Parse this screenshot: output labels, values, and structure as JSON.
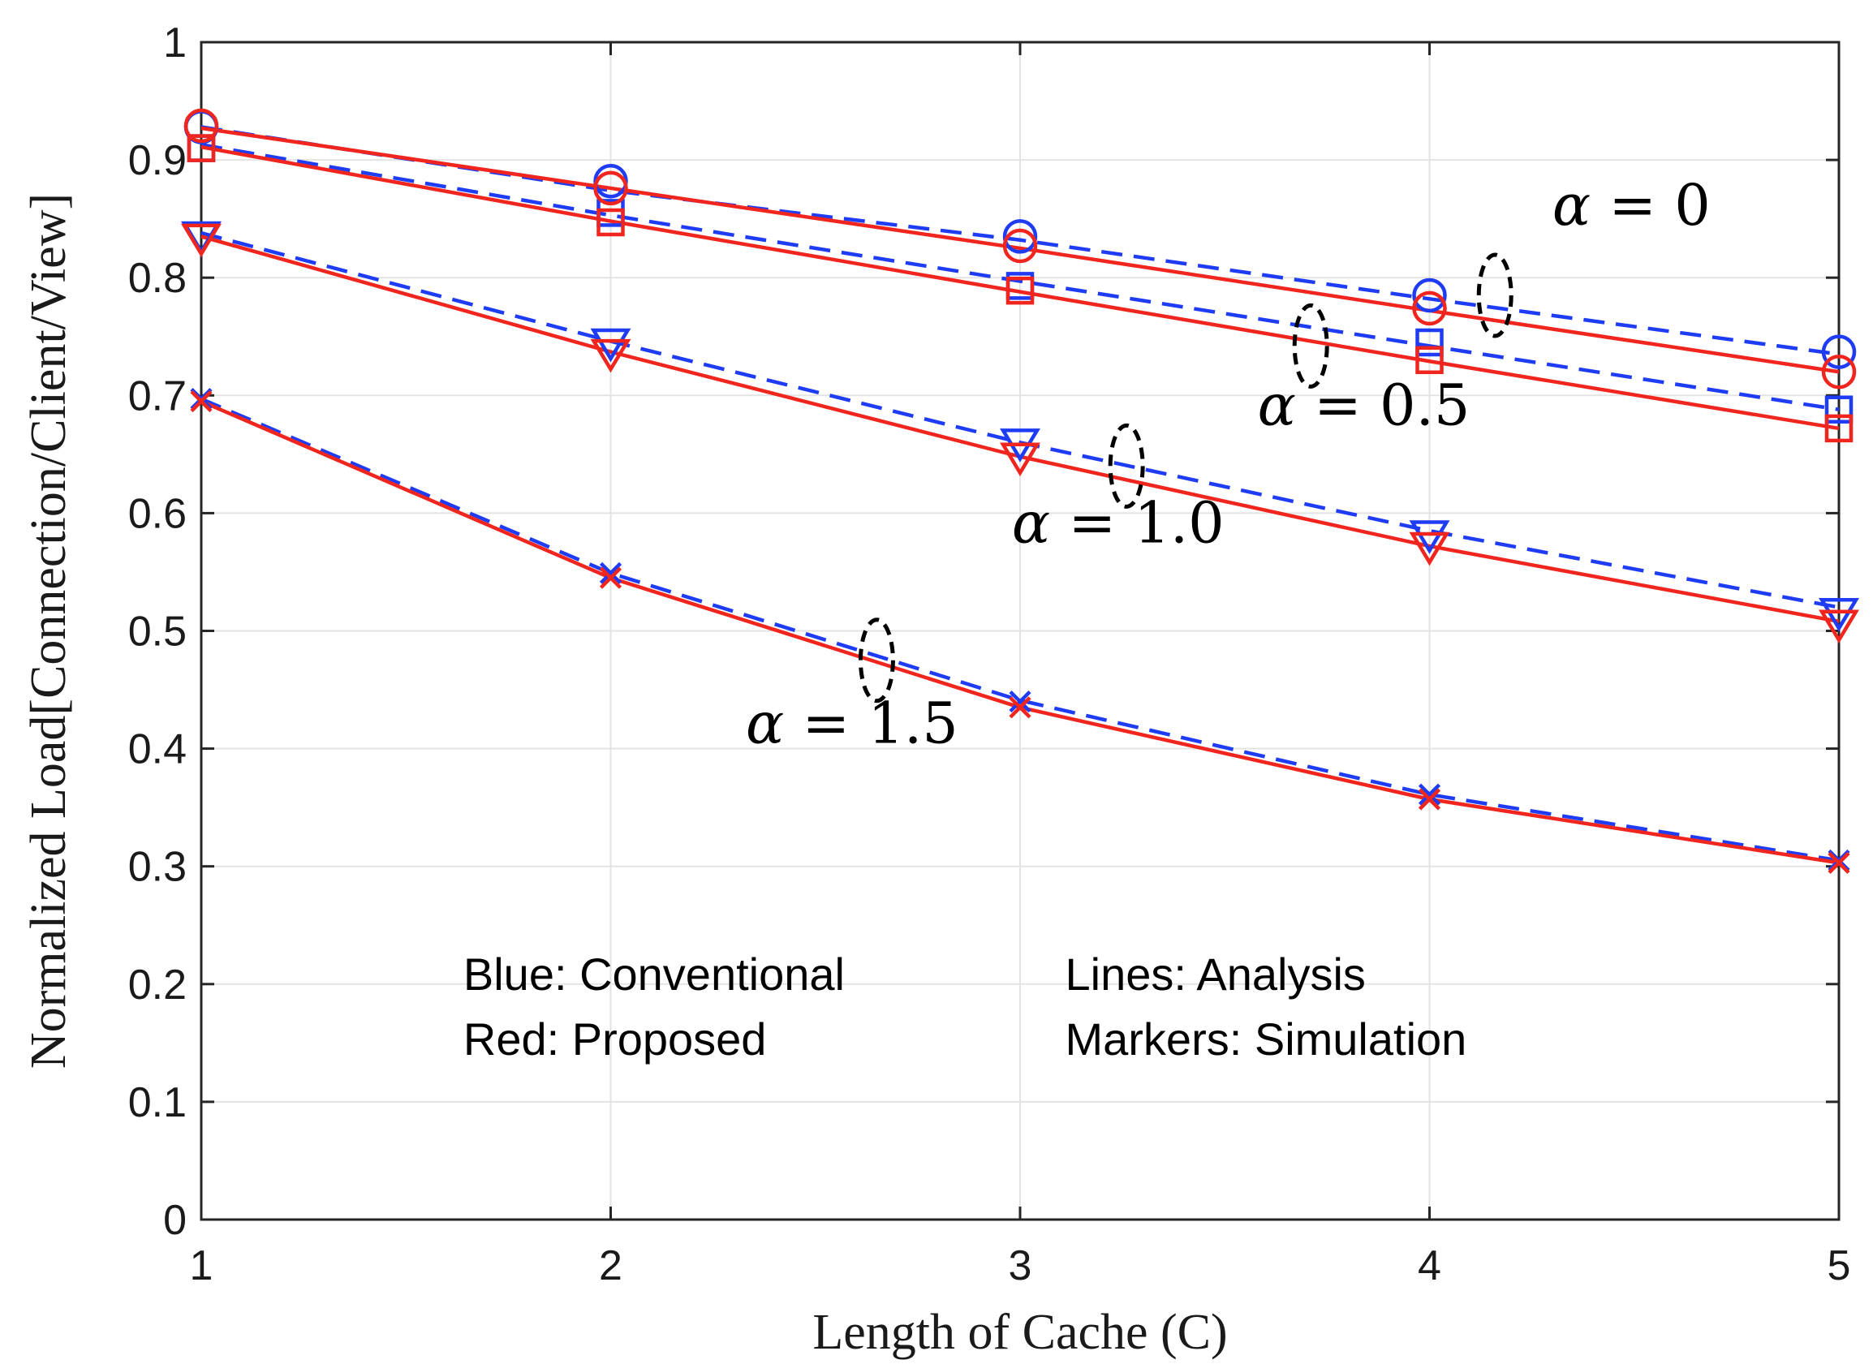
{
  "chart_data": {
    "type": "line",
    "title": "",
    "xlabel": "Length of Cache (C)",
    "ylabel": "Normalized Load[Connection/Client/View]",
    "xlim": [
      1,
      5
    ],
    "ylim": [
      0,
      1
    ],
    "x": [
      1,
      2,
      3,
      4,
      5
    ],
    "xticks": [
      "1",
      "2",
      "3",
      "4",
      "5"
    ],
    "yticks": [
      "0",
      "0.1",
      "0.2",
      "0.3",
      "0.4",
      "0.5",
      "0.6",
      "0.7",
      "0.8",
      "0.9",
      "1"
    ],
    "grid": true,
    "colors": {
      "conventional": "#1f3cf5",
      "proposed": "#f0261e",
      "annotation": "#000000"
    },
    "series": [
      {
        "name": "Conventional α=0 (analysis)",
        "group": "conventional",
        "kind": "analysis",
        "values": [
          0.928,
          0.874,
          0.832,
          0.782,
          0.735
        ]
      },
      {
        "name": "Conventional α=0 (simulation)",
        "group": "conventional",
        "kind": "simulation",
        "marker": "circle",
        "values": [
          0.928,
          0.882,
          0.835,
          0.785,
          0.737
        ]
      },
      {
        "name": "Proposed α=0 (analysis)",
        "group": "proposed",
        "kind": "analysis",
        "values": [
          0.927,
          0.876,
          0.825,
          0.772,
          0.72
        ]
      },
      {
        "name": "Proposed α=0 (simulation)",
        "group": "proposed",
        "kind": "simulation",
        "marker": "circle",
        "values": [
          0.929,
          0.876,
          0.827,
          0.774,
          0.72
        ]
      },
      {
        "name": "Conventional α=0.5 (analysis)",
        "group": "conventional",
        "kind": "analysis",
        "values": [
          0.913,
          0.853,
          0.797,
          0.742,
          0.688
        ]
      },
      {
        "name": "Conventional α=0.5 (simulation)",
        "group": "conventional",
        "kind": "simulation",
        "marker": "square",
        "values": [
          0.91,
          0.855,
          0.793,
          0.745,
          0.688
        ]
      },
      {
        "name": "Proposed α=0.5 (analysis)",
        "group": "proposed",
        "kind": "analysis",
        "values": [
          0.911,
          0.848,
          0.788,
          0.729,
          0.672
        ]
      },
      {
        "name": "Proposed α=0.5 (simulation)",
        "group": "proposed",
        "kind": "simulation",
        "marker": "square",
        "values": [
          0.91,
          0.847,
          0.789,
          0.73,
          0.672
        ]
      },
      {
        "name": "Conventional α=1.0 (analysis)",
        "group": "conventional",
        "kind": "analysis",
        "values": [
          0.838,
          0.746,
          0.66,
          0.585,
          0.52
        ]
      },
      {
        "name": "Conventional α=1.0 (simulation)",
        "group": "conventional",
        "kind": "simulation",
        "marker": "triangle-down",
        "values": [
          0.836,
          0.745,
          0.66,
          0.582,
          0.516
        ]
      },
      {
        "name": "Proposed α=1.0 (analysis)",
        "group": "proposed",
        "kind": "analysis",
        "values": [
          0.835,
          0.737,
          0.648,
          0.572,
          0.508
        ]
      },
      {
        "name": "Proposed α=1.0 (simulation)",
        "group": "proposed",
        "kind": "simulation",
        "marker": "triangle-down",
        "values": [
          0.834,
          0.736,
          0.648,
          0.572,
          0.506
        ]
      },
      {
        "name": "Conventional α=1.5 (analysis)",
        "group": "conventional",
        "kind": "analysis",
        "values": [
          0.697,
          0.549,
          0.441,
          0.361,
          0.305
        ]
      },
      {
        "name": "Conventional α=1.5 (simulation)",
        "group": "conventional",
        "kind": "simulation",
        "marker": "x",
        "values": [
          0.697,
          0.549,
          0.44,
          0.361,
          0.305
        ]
      },
      {
        "name": "Proposed α=1.5 (analysis)",
        "group": "proposed",
        "kind": "analysis",
        "values": [
          0.695,
          0.545,
          0.435,
          0.357,
          0.303
        ]
      },
      {
        "name": "Proposed α=1.5 (simulation)",
        "group": "proposed",
        "kind": "simulation",
        "marker": "x",
        "values": [
          0.695,
          0.545,
          0.435,
          0.357,
          0.303
        ]
      }
    ],
    "annotations": [
      {
        "id": "alpha-0",
        "symbol": "α",
        "rest": " = 0",
        "ellipse_at": [
          4.16,
          0.785
        ],
        "text_at": [
          4.3,
          0.845
        ]
      },
      {
        "id": "alpha-05",
        "symbol": "α",
        "rest": " = 0.5",
        "ellipse_at": [
          3.71,
          0.742
        ],
        "text_at": [
          3.58,
          0.675
        ]
      },
      {
        "id": "alpha-10",
        "symbol": "α",
        "rest": " = 1.0",
        "ellipse_at": [
          3.26,
          0.64
        ],
        "text_at": [
          2.98,
          0.575
        ]
      },
      {
        "id": "alpha-15",
        "symbol": "α",
        "rest": " = 1.5",
        "ellipse_at": [
          2.65,
          0.475
        ],
        "text_at": [
          2.33,
          0.405
        ]
      }
    ],
    "notes": [
      {
        "id": "note-blue",
        "text": "Blue: Conventional",
        "at": [
          1.64,
          0.195
        ]
      },
      {
        "id": "note-red",
        "text": "Red: Proposed",
        "at": [
          1.64,
          0.14
        ]
      },
      {
        "id": "note-lines",
        "text": "Lines: Analysis",
        "at": [
          3.11,
          0.195
        ]
      },
      {
        "id": "note-markers",
        "text": "Markers: Simulation",
        "at": [
          3.11,
          0.14
        ]
      }
    ]
  }
}
